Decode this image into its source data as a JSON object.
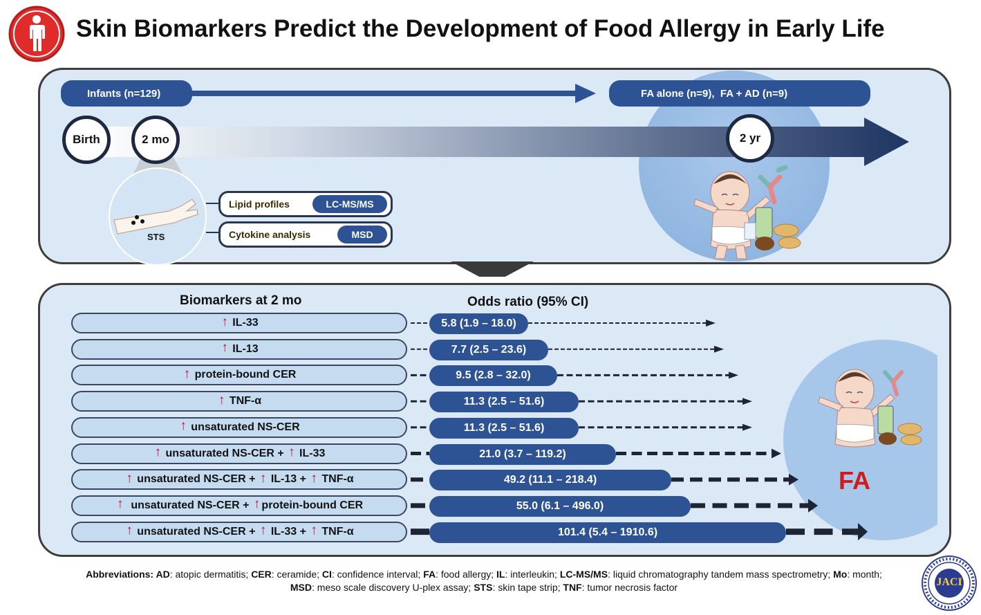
{
  "title": "Skin Biomarkers Predict the Development of Food Allergy in Early Life",
  "timeline": {
    "infants_label": "Infants (n=129)",
    "outcome_label": "FA alone (n=9),  FA + AD (n=9)",
    "birth": "Birth",
    "mo2": "2 mo",
    "yr2": "2 yr",
    "sts_label": "STS",
    "lipid_label": "Lipid profiles",
    "lipid_method": "LC-MS/MS",
    "cytokine_label": "Cytokine analysis",
    "cytokine_method": "MSD"
  },
  "results": {
    "biomarkers_header": "Biomarkers at 2 mo",
    "or_header": "Odds ratio (95% CI)",
    "fa_label": "FA",
    "rows": [
      {
        "parts": [
          "↑",
          " IL-33"
        ],
        "or": "5.8 (1.9 – 18.0)"
      },
      {
        "parts": [
          "↑",
          " IL-13"
        ],
        "or": "7.7 (2.5 – 23.6)"
      },
      {
        "parts": [
          "↑",
          " protein-bound CER"
        ],
        "or": "9.5 (2.8 – 32.0)"
      },
      {
        "parts": [
          "↑",
          " TNF-α"
        ],
        "or": "11.3 (2.5 – 51.6)"
      },
      {
        "parts": [
          "↑",
          " unsaturated NS-CER"
        ],
        "or": "11.3 (2.5 – 51.6)"
      },
      {
        "parts": [
          "↑",
          " unsaturated NS-CER + ",
          "↑",
          " IL-33"
        ],
        "or": "21.0 (3.7 – 119.2)"
      },
      {
        "parts": [
          "↑",
          " unsaturated NS-CER + ",
          "↑",
          " IL-13 + ",
          "↑",
          " TNF-α"
        ],
        "or": "49.2 (11.1 – 218.4)"
      },
      {
        "parts": [
          "↑",
          "  unsaturated NS-CER + ",
          "↑",
          "protein-bound CER"
        ],
        "or": "55.0 (6.1 – 496.0)"
      },
      {
        "parts": [
          "↑",
          " unsaturated NS-CER + ",
          "↑",
          " IL-33 + ",
          "↑",
          " TNF-α"
        ],
        "or": "101.4 (5.4 – 1910.6)"
      }
    ]
  },
  "abbreviations": [
    {
      "term": "Abbreviations: AD",
      "def": ": atopic dermatitis; "
    },
    {
      "term": "CER",
      "def": ": ceramide; "
    },
    {
      "term": "CI",
      "def": ": confidence interval; "
    },
    {
      "term": "FA",
      "def": ": food allergy; "
    },
    {
      "term": "IL",
      "def": ": interleukin; "
    },
    {
      "term": "LC-MS/MS",
      "def": ": liquid chromatography tandem mass spectrometry; "
    },
    {
      "term": "Mo",
      "def": ": month; "
    },
    {
      "term": "MSD",
      "def": ": meso scale discovery U-plex assay; "
    },
    {
      "term": "STS",
      "def": ": skin tape strip; "
    },
    {
      "term": "TNF",
      "def": ": tumor necrosis factor"
    }
  ],
  "logo_text": "JACI",
  "colors": {
    "accent_blue": "#2d5394",
    "arrow_red": "#c8102e",
    "panel_bg": "#dbe9f6",
    "fa_red": "#d11a1a"
  }
}
